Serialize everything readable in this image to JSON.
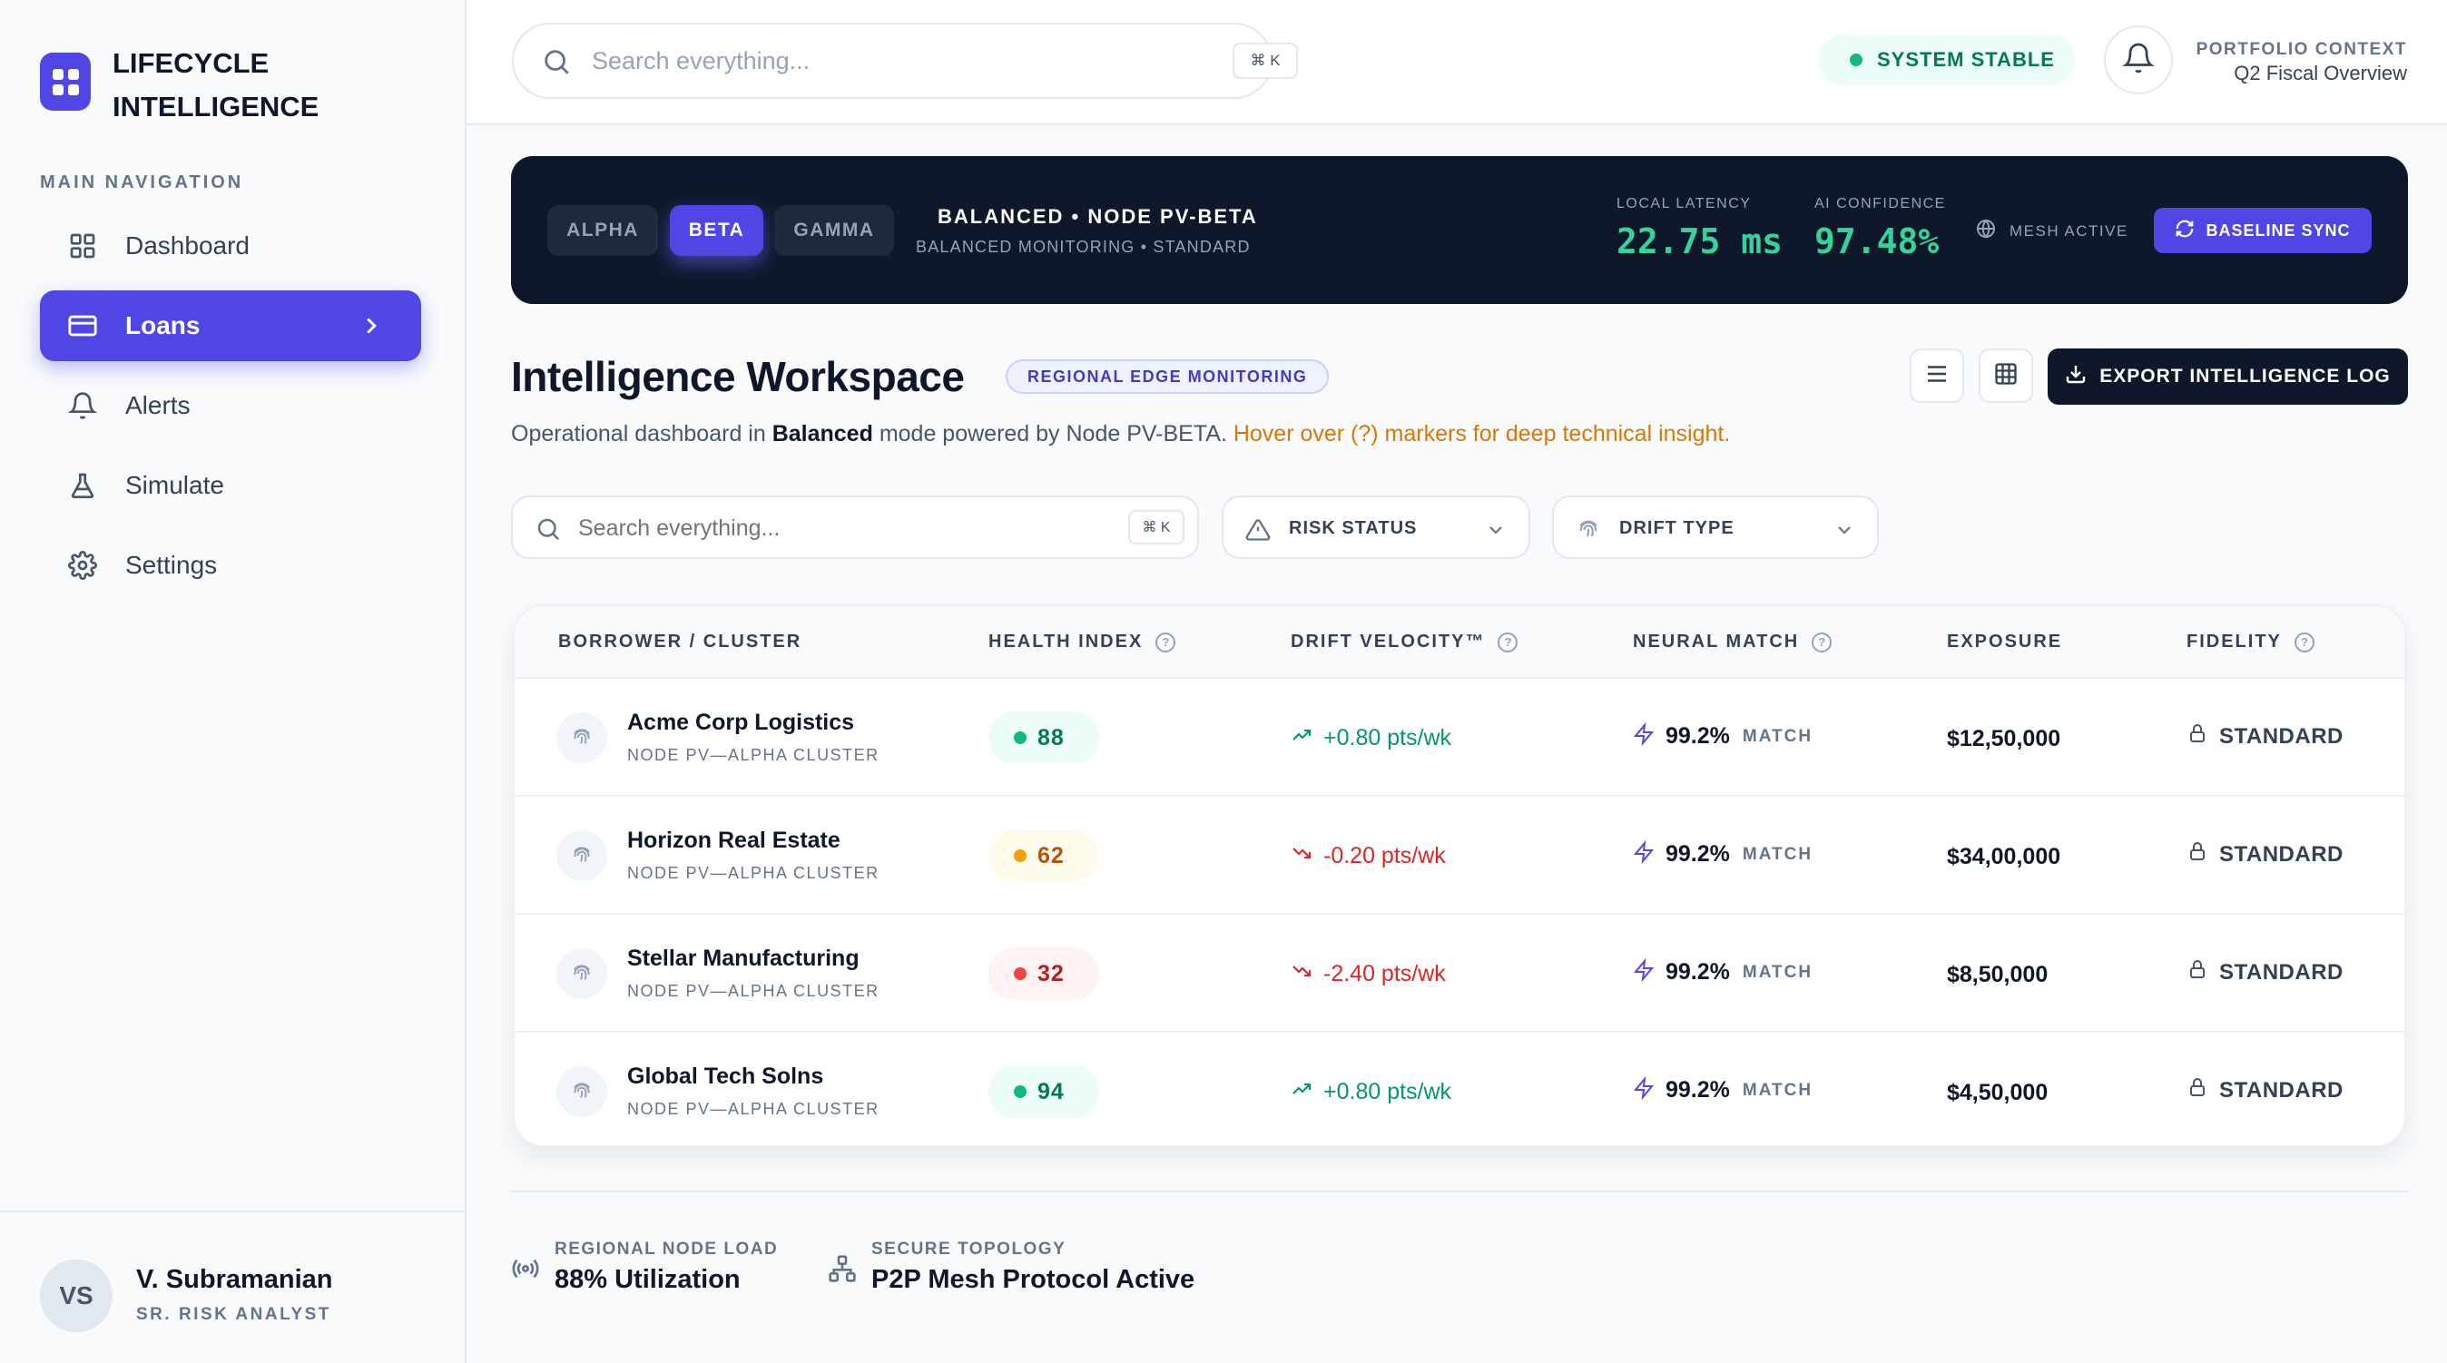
{
  "brand": {
    "line1": "LIFECYCLE",
    "line2": "INTELLIGENCE",
    "logo_icon": "grid-icon",
    "accent": "#4f46e5"
  },
  "sidebar": {
    "section_title": "MAIN NAVIGATION",
    "items": [
      {
        "label": "Dashboard",
        "icon": "dashboard-icon",
        "active": false
      },
      {
        "label": "Loans",
        "icon": "card-icon",
        "active": true
      },
      {
        "label": "Alerts",
        "icon": "bell-icon",
        "active": false
      },
      {
        "label": "Simulate",
        "icon": "flask-icon",
        "active": false
      },
      {
        "label": "Settings",
        "icon": "gear-icon",
        "active": false
      }
    ],
    "user": {
      "initials": "VS",
      "name": "V. Subramanian",
      "role": "SR. RISK ANALYST"
    }
  },
  "header": {
    "search_placeholder": "Search everything...",
    "shortcut": "⌘ K",
    "status": "SYSTEM STABLE",
    "context_label": "PORTFOLIO CONTEXT",
    "context_value": "Q2 Fiscal Overview"
  },
  "banner": {
    "segments": [
      "ALPHA",
      "BETA",
      "GAMMA"
    ],
    "selected_segment": "BETA",
    "mode_title": "BALANCED • NODE PV-BETA",
    "mode_subtitle": "BALANCED MONITORING • STANDARD",
    "latency_label": "LOCAL LATENCY",
    "latency_value": "22.75 ms",
    "confidence_label": "AI CONFIDENCE",
    "confidence_value": "97.48%",
    "mesh_label": "MESH ACTIVE",
    "sync_label": "BASELINE SYNC"
  },
  "workspace": {
    "title": "Intelligence Workspace",
    "badge": "REGIONAL EDGE MONITORING",
    "desc_prefix": "Operational dashboard in ",
    "desc_mode": "Balanced",
    "desc_mid": " mode powered by Node PV-BETA. ",
    "desc_hint": "Hover over (?) markers for deep technical insight.",
    "export_label": "EXPORT INTELLIGENCE LOG"
  },
  "filters": {
    "search_placeholder": "Search everything...",
    "shortcut": "⌘ K",
    "risk_label": "RISK STATUS",
    "drift_label": "DRIFT TYPE"
  },
  "table": {
    "headers": {
      "borrower": "BORROWER / CLUSTER",
      "health": "HEALTH INDEX",
      "drift": "DRIFT VELOCITY™",
      "neural": "NEURAL MATCH",
      "exposure": "EXPOSURE",
      "fidelity": "FIDELITY"
    },
    "help_marker": "?",
    "rows": [
      {
        "name": "Acme Corp Logistics",
        "cluster": "NODE PV—ALPHA CLUSTER",
        "health": "88",
        "health_level": "good",
        "drift": "+0.80 pts/wk",
        "drift_dir": "up",
        "neural": "99.2%",
        "match": "MATCH",
        "exposure": "$12,50,000",
        "fidelity": "STANDARD"
      },
      {
        "name": "Horizon Real Estate",
        "cluster": "NODE PV—ALPHA CLUSTER",
        "health": "62",
        "health_level": "mid",
        "drift": "-0.20 pts/wk",
        "drift_dir": "down",
        "neural": "99.2%",
        "match": "MATCH",
        "exposure": "$34,00,000",
        "fidelity": "STANDARD"
      },
      {
        "name": "Stellar Manufacturing",
        "cluster": "NODE PV—ALPHA CLUSTER",
        "health": "32",
        "health_level": "bad",
        "drift": "-2.40 pts/wk",
        "drift_dir": "down",
        "neural": "99.2%",
        "match": "MATCH",
        "exposure": "$8,50,000",
        "fidelity": "STANDARD"
      },
      {
        "name": "Global Tech Solns",
        "cluster": "NODE PV—ALPHA CLUSTER",
        "health": "94",
        "health_level": "good",
        "drift": "+0.80 pts/wk",
        "drift_dir": "up",
        "neural": "99.2%",
        "match": "MATCH",
        "exposure": "$4,50,000",
        "fidelity": "STANDARD"
      }
    ]
  },
  "footer": {
    "load_label": "REGIONAL NODE LOAD",
    "load_value": "88% Utilization",
    "topology_label": "SECURE TOPOLOGY",
    "topology_value": "P2P Mesh Protocol Active"
  }
}
